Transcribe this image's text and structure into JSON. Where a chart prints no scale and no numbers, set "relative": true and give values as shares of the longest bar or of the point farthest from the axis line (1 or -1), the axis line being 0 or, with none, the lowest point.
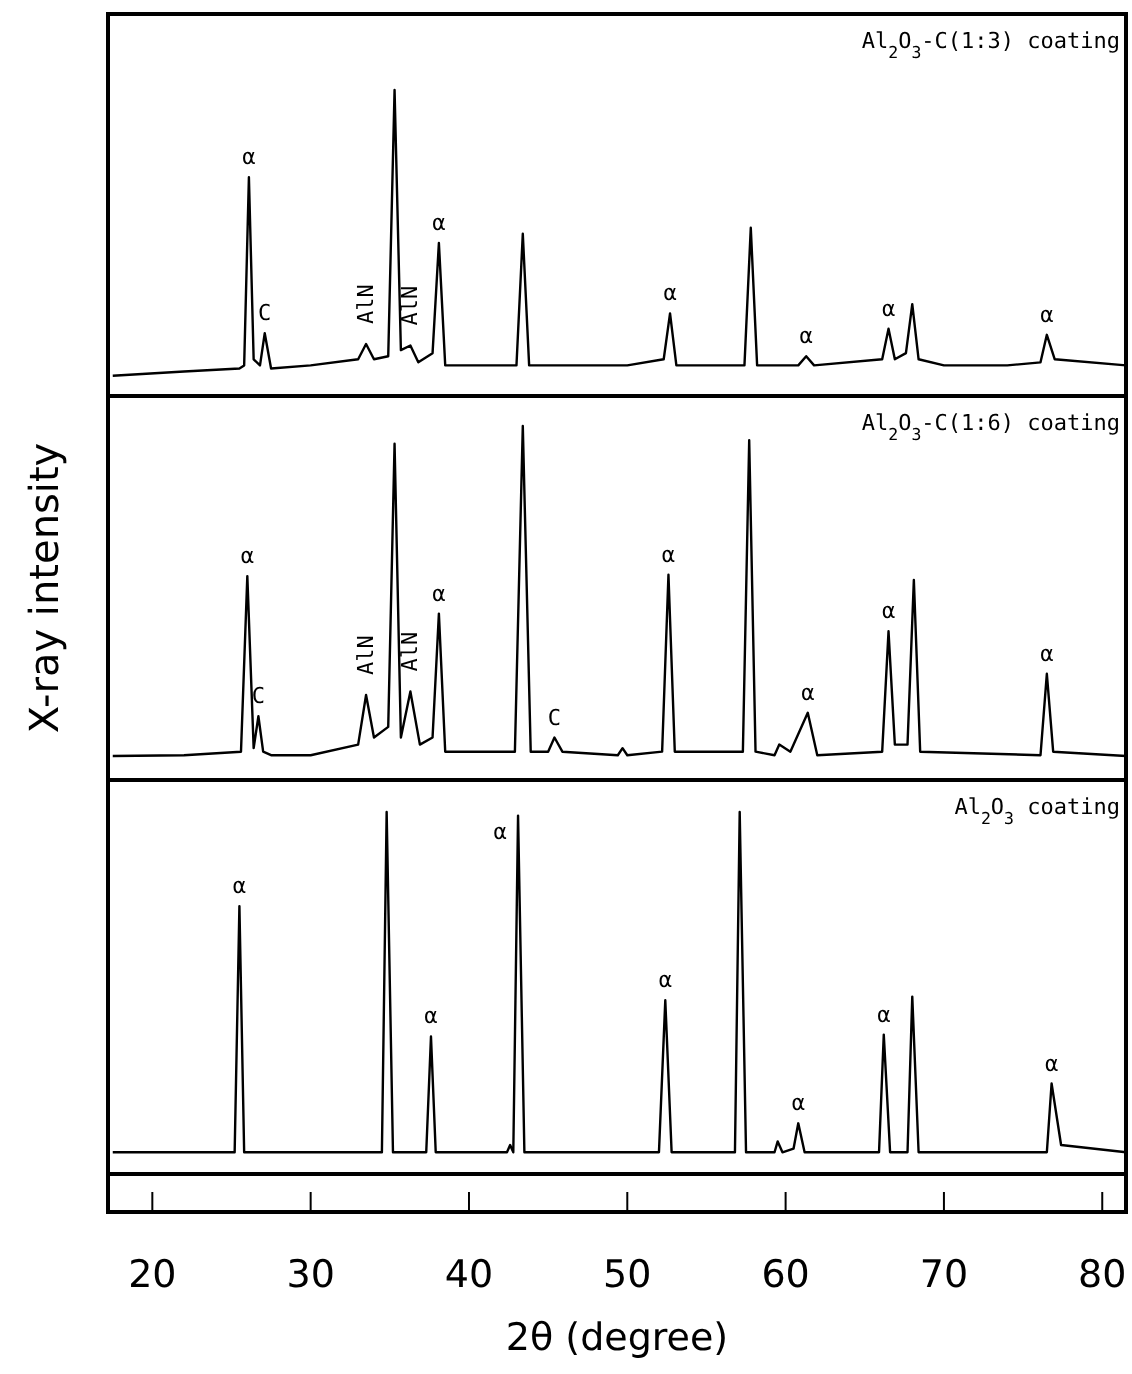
{
  "chart_data": [
    {
      "type": "line",
      "title": "Al$_{2}$O$_{3}$-C(1:3) coating",
      "relative": true,
      "tick_labels": false,
      "xlim": [
        17.2,
        81.5
      ],
      "series": [
        {
          "color": "#000000",
          "x": [
            17.5,
            22,
            25.5,
            25.8,
            26.1,
            26.4,
            26.8,
            27.1,
            27.5,
            30,
            33,
            33.5,
            34,
            34.9,
            35.3,
            35.7,
            36.3,
            36.8,
            37.7,
            38.1,
            38.5,
            40,
            43.0,
            43.4,
            43.8,
            46,
            50,
            52.3,
            52.7,
            53.1,
            55,
            57.4,
            57.8,
            58.2,
            60.8,
            61.3,
            61.8,
            66.1,
            66.5,
            66.9,
            67.6,
            68.0,
            68.4,
            70,
            74,
            76.1,
            76.5,
            77.0,
            81.5
          ],
          "values": [
            0.066,
            0.08,
            0.09,
            0.1,
            0.715,
            0.12,
            0.1,
            0.205,
            0.09,
            0.1,
            0.12,
            0.17,
            0.12,
            0.13,
            1.0,
            0.15,
            0.165,
            0.11,
            0.14,
            0.5,
            0.1,
            0.1,
            0.1,
            0.53,
            0.1,
            0.1,
            0.1,
            0.12,
            0.27,
            0.1,
            0.1,
            0.1,
            0.55,
            0.1,
            0.1,
            0.13,
            0.1,
            0.12,
            0.22,
            0.12,
            0.14,
            0.3,
            0.12,
            0.1,
            0.1,
            0.11,
            0.2,
            0.12,
            0.1
          ]
        }
      ],
      "annotations": [
        {
          "text": "α",
          "x": 26.1,
          "y": 0.715
        },
        {
          "text": "C",
          "x": 27.1,
          "y": 0.205
        },
        {
          "text": "AlN",
          "x": 33.5,
          "y": 0.17
        },
        {
          "text": "AlN",
          "x": 36.3,
          "y": 0.165
        },
        {
          "text": "α",
          "x": 38.1,
          "y": 0.5
        },
        {
          "text": "α",
          "x": 52.7,
          "y": 0.27
        },
        {
          "text": "α",
          "x": 61.3,
          "y": 0.13
        },
        {
          "text": "α",
          "x": 66.5,
          "y": 0.22
        },
        {
          "text": "α",
          "x": 76.5,
          "y": 0.2
        }
      ]
    },
    {
      "type": "line",
      "title": "Al$_{2}$O$_{3}$-C(1:6) coating",
      "ylabel": "X-ray intensity",
      "relative": true,
      "tick_labels": false,
      "xlim": [
        17.2,
        81.5
      ],
      "series": [
        {
          "color": "#000000",
          "x": [
            17.5,
            22,
            25.6,
            26.0,
            26.4,
            26.7,
            27.0,
            27.5,
            30,
            33,
            33.5,
            34.0,
            34.9,
            35.3,
            35.7,
            36.3,
            36.9,
            37.7,
            38.1,
            38.5,
            42.9,
            43.4,
            43.9,
            45.0,
            45.4,
            45.9,
            49.4,
            49.7,
            50.0,
            52.2,
            52.6,
            53.0,
            57.3,
            57.7,
            58.1,
            59.3,
            59.6,
            60.3,
            61.4,
            62.0,
            66.1,
            66.5,
            66.9,
            67.7,
            68.1,
            68.5,
            76.1,
            76.5,
            76.9,
            81.5
          ],
          "values": [
            0.068,
            0.07,
            0.08,
            0.576,
            0.09,
            0.18,
            0.08,
            0.07,
            0.07,
            0.1,
            0.24,
            0.12,
            0.15,
            0.95,
            0.12,
            0.25,
            0.1,
            0.12,
            0.47,
            0.08,
            0.08,
            1.0,
            0.08,
            0.08,
            0.12,
            0.08,
            0.07,
            0.09,
            0.07,
            0.08,
            0.58,
            0.08,
            0.08,
            0.96,
            0.08,
            0.07,
            0.1,
            0.08,
            0.19,
            0.07,
            0.08,
            0.42,
            0.1,
            0.1,
            0.565,
            0.08,
            0.07,
            0.3,
            0.08,
            0.068
          ]
        }
      ],
      "annotations": [
        {
          "text": "α",
          "x": 26.0,
          "y": 0.576
        },
        {
          "text": "C",
          "x": 26.7,
          "y": 0.18
        },
        {
          "text": "AlN",
          "x": 33.5,
          "y": 0.24
        },
        {
          "text": "AlN",
          "x": 36.3,
          "y": 0.25
        },
        {
          "text": "α",
          "x": 38.1,
          "y": 0.47
        },
        {
          "text": "C",
          "x": 45.4,
          "y": 0.12
        },
        {
          "text": "α",
          "x": 52.6,
          "y": 0.58
        },
        {
          "text": "α",
          "x": 61.4,
          "y": 0.19
        },
        {
          "text": "α",
          "x": 66.5,
          "y": 0.42
        },
        {
          "text": "α",
          "x": 76.5,
          "y": 0.3
        }
      ]
    },
    {
      "type": "line",
      "title": "Al$_{2}$O$_{3}$ coating",
      "xlabel": "2θ (degree)",
      "relative": true,
      "tick_labels": "x",
      "xlim": [
        17.2,
        81.5
      ],
      "xticks": [
        20,
        30,
        40,
        50,
        60,
        70,
        80
      ],
      "series": [
        {
          "color": "#000000",
          "x": [
            17.5,
            25.2,
            25.5,
            25.8,
            34.5,
            34.8,
            35.2,
            37.3,
            37.6,
            37.9,
            42.4,
            42.6,
            42.8,
            43.1,
            43.5,
            52.0,
            52.4,
            52.8,
            56.8,
            57.1,
            57.5,
            59.3,
            59.5,
            59.8,
            60.5,
            60.8,
            61.2,
            65.9,
            66.2,
            66.6,
            67.7,
            68.0,
            68.4,
            76.5,
            76.8,
            77.4,
            81.5
          ],
          "values": [
            0.06,
            0.06,
            0.74,
            0.06,
            0.06,
            1.0,
            0.06,
            0.06,
            0.38,
            0.06,
            0.06,
            0.08,
            0.06,
            0.99,
            0.06,
            0.06,
            0.48,
            0.06,
            0.06,
            1.0,
            0.06,
            0.06,
            0.09,
            0.06,
            0.07,
            0.14,
            0.06,
            0.06,
            0.385,
            0.06,
            0.06,
            0.49,
            0.06,
            0.06,
            0.25,
            0.08,
            0.06
          ]
        }
      ],
      "annotations": [
        {
          "text": "α",
          "x": 25.5,
          "y": 0.74
        },
        {
          "text": "α",
          "x": 37.6,
          "y": 0.38
        },
        {
          "text": "α",
          "x": 43.1,
          "y": 0.99
        },
        {
          "text": "α",
          "x": 52.4,
          "y": 0.48
        },
        {
          "text": "α",
          "x": 60.8,
          "y": 0.14
        },
        {
          "text": "α",
          "x": 66.2,
          "y": 0.385
        },
        {
          "text": "α",
          "x": 76.8,
          "y": 0.25
        }
      ]
    }
  ]
}
